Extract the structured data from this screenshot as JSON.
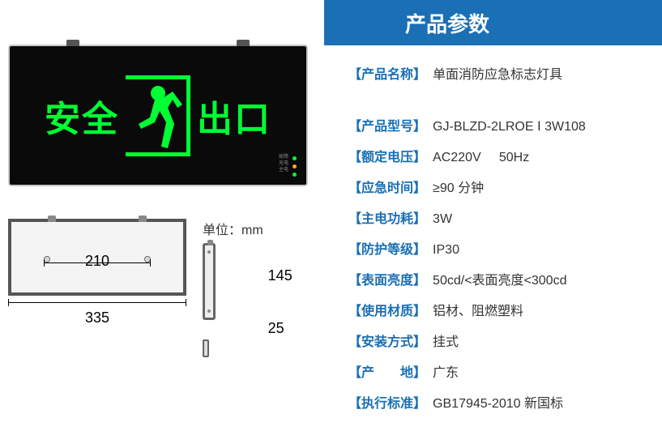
{
  "header": {
    "title": "产品参数"
  },
  "product_sign": {
    "text_left": "安全",
    "text_right": "出口",
    "sign_color": "#00ff33",
    "panel_color": "#0a0a0a"
  },
  "dimensions": {
    "unit_label": "单位：mm",
    "front_width": "335",
    "mount_span": "210",
    "front_height": "145",
    "side_depth": "25"
  },
  "specs": [
    {
      "label": "产品名称",
      "value": "单面消防应急标志灯具",
      "gap": true
    },
    {
      "label": "产品型号",
      "value": "GJ-BLZD-2LROE Ⅰ 3W108"
    },
    {
      "label": "额定电压",
      "value": "AC220V     50Hz"
    },
    {
      "label": "应急时间",
      "value": "≥90 分钟"
    },
    {
      "label": "主电功耗",
      "value": "3W"
    },
    {
      "label": "防护等级",
      "value": "IP30"
    },
    {
      "label": "表面亮度",
      "value": "50cd/<表面亮度<300cd"
    },
    {
      "label": "使用材质",
      "value": "铝材、阻燃塑料"
    },
    {
      "label": "安装方式",
      "value": "挂式"
    },
    {
      "label": "产　　地",
      "value": "广东"
    },
    {
      "label": "执行标准",
      "value": "GB17945-2010 新国标"
    }
  ],
  "colors": {
    "header_bg": "#1a6fb5",
    "label_color": "#1a6fb5",
    "value_color": "#333333"
  }
}
